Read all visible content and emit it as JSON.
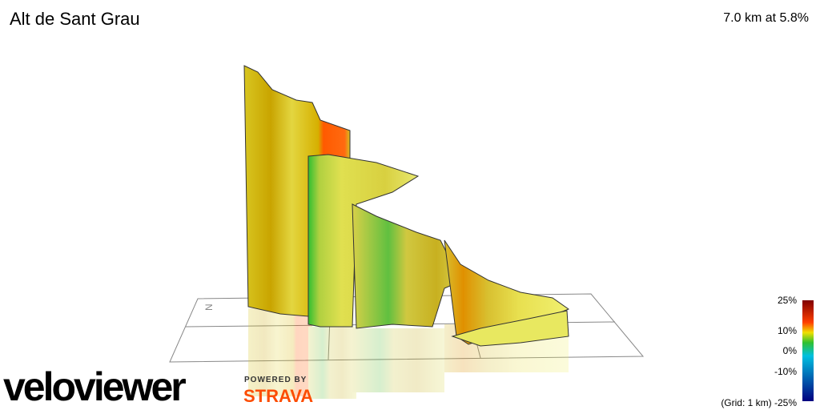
{
  "header": {
    "title": "Alt de Sant Grau",
    "stats": "7.0 km at 5.8%"
  },
  "compass": "N",
  "legend": {
    "labels": [
      "25%",
      "10%",
      "0%",
      "-10%",
      "(Grid: 1 km) -25%"
    ]
  },
  "branding": {
    "logo": "veloviewer",
    "powered": "POWERED BY",
    "partner": "STRAVA"
  }
}
